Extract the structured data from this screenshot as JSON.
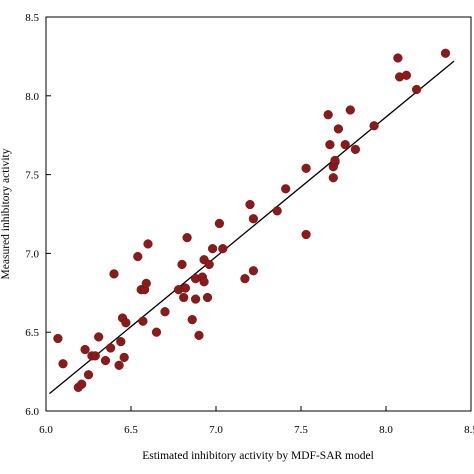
{
  "chart_data": {
    "type": "scatter",
    "title": "",
    "xlabel": "Estimated inhibitory activity by MDF-SAR model",
    "ylabel": "Measured inhibitory activity",
    "xlim": [
      6.0,
      8.5
    ],
    "ylim": [
      6.0,
      8.5
    ],
    "xticks": [
      "6.0",
      "6.5",
      "7.0",
      "7.5",
      "8.0",
      "8.5"
    ],
    "yticks": [
      "6.0",
      "6.5",
      "7.0",
      "7.5",
      "8.0",
      "8.5"
    ],
    "grid": false,
    "legend": "none",
    "marker_color": "#8b1a1a",
    "line_color": "#000000",
    "fit_line": {
      "x": [
        6.02,
        8.4
      ],
      "y": [
        6.11,
        8.22
      ]
    },
    "points": [
      [
        6.07,
        6.46
      ],
      [
        6.1,
        6.3
      ],
      [
        6.19,
        6.15
      ],
      [
        6.21,
        6.17
      ],
      [
        6.23,
        6.39
      ],
      [
        6.25,
        6.23
      ],
      [
        6.27,
        6.35
      ],
      [
        6.29,
        6.35
      ],
      [
        6.31,
        6.47
      ],
      [
        6.35,
        6.32
      ],
      [
        6.38,
        6.4
      ],
      [
        6.4,
        6.87
      ],
      [
        6.43,
        6.29
      ],
      [
        6.44,
        6.44
      ],
      [
        6.45,
        6.59
      ],
      [
        6.46,
        6.34
      ],
      [
        6.47,
        6.56
      ],
      [
        6.54,
        6.98
      ],
      [
        6.56,
        6.77
      ],
      [
        6.57,
        6.57
      ],
      [
        6.58,
        6.77
      ],
      [
        6.59,
        6.81
      ],
      [
        6.6,
        7.06
      ],
      [
        6.65,
        6.5
      ],
      [
        6.7,
        6.63
      ],
      [
        6.78,
        6.77
      ],
      [
        6.8,
        6.93
      ],
      [
        6.81,
        6.72
      ],
      [
        6.82,
        6.78
      ],
      [
        6.83,
        7.1
      ],
      [
        6.86,
        6.58
      ],
      [
        6.88,
        6.71
      ],
      [
        6.88,
        6.84
      ],
      [
        6.9,
        6.48
      ],
      [
        6.92,
        6.85
      ],
      [
        6.93,
        6.96
      ],
      [
        6.93,
        6.82
      ],
      [
        6.95,
        6.72
      ],
      [
        6.96,
        6.93
      ],
      [
        6.98,
        7.03
      ],
      [
        7.02,
        7.19
      ],
      [
        7.04,
        7.03
      ],
      [
        7.17,
        6.84
      ],
      [
        7.2,
        7.31
      ],
      [
        7.22,
        7.22
      ],
      [
        7.22,
        6.89
      ],
      [
        7.36,
        7.27
      ],
      [
        7.41,
        7.41
      ],
      [
        7.53,
        7.54
      ],
      [
        7.53,
        7.12
      ],
      [
        7.66,
        7.88
      ],
      [
        7.67,
        7.69
      ],
      [
        7.69,
        7.48
      ],
      [
        7.69,
        7.55
      ],
      [
        7.7,
        7.58
      ],
      [
        7.7,
        7.59
      ],
      [
        7.72,
        7.79
      ],
      [
        7.76,
        7.69
      ],
      [
        7.79,
        7.91
      ],
      [
        7.82,
        7.66
      ],
      [
        7.93,
        7.81
      ],
      [
        8.07,
        8.24
      ],
      [
        8.08,
        8.12
      ],
      [
        8.12,
        8.13
      ],
      [
        8.18,
        8.04
      ],
      [
        8.35,
        8.27
      ]
    ]
  }
}
